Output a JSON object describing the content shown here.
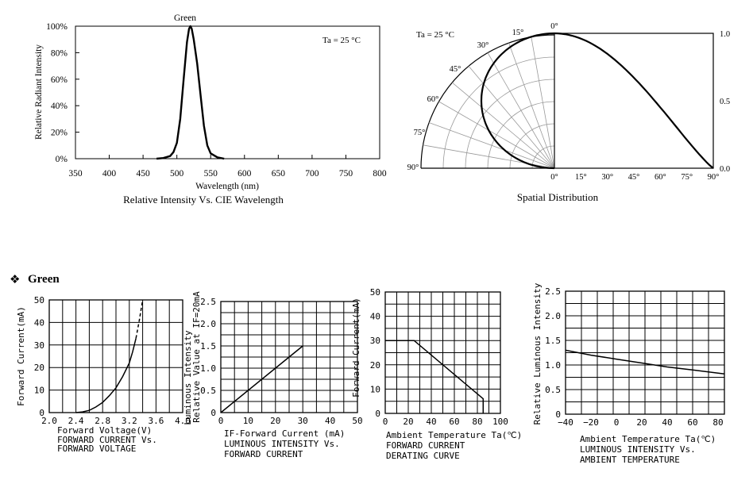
{
  "section_heading": {
    "bullet": "❖",
    "text": "Green"
  },
  "chart_data": [
    {
      "id": "spectrum",
      "type": "line",
      "title": "Relative Intensity Vs. CIE Wavelength",
      "series_label": "Green",
      "annotation": "Ta = 25 °C",
      "xlabel": "Wavelength (nm)",
      "ylabel": "Relative Radiant Intensity",
      "xlim": [
        350,
        800
      ],
      "ylim": [
        0,
        100
      ],
      "x_ticks": [
        "350",
        "400",
        "450",
        "500",
        "550",
        "600",
        "650",
        "700",
        "750",
        "800"
      ],
      "y_ticks": [
        "0%",
        "20%",
        "40%",
        "60%",
        "80%",
        "100%"
      ],
      "grid": false,
      "series": [
        {
          "x": [
            470,
            480,
            490,
            495,
            500,
            505,
            510,
            515,
            518,
            520,
            522,
            525,
            530,
            535,
            540,
            545,
            550,
            560,
            570
          ],
          "y": [
            0,
            0.5,
            2,
            5,
            12,
            30,
            60,
            88,
            98,
            100,
            98,
            90,
            72,
            48,
            25,
            10,
            4,
            1,
            0
          ]
        }
      ]
    },
    {
      "id": "spatial",
      "type": "line",
      "title": "Spatial Distribution",
      "annotation": "Ta = 25 °C",
      "angle_labels": [
        "0°",
        "15°",
        "30°",
        "45°",
        "60°",
        "75°",
        "90°"
      ],
      "x_ticks": [
        "0°",
        "15°",
        "30°",
        "45°",
        "60°",
        "75°",
        "90°"
      ],
      "radial_ticks": [
        "0.0",
        "0.5",
        "1.0"
      ],
      "series": [
        {
          "angle_deg": [
            0,
            10,
            20,
            30,
            40,
            50,
            60,
            70,
            80,
            90
          ],
          "value": [
            1.0,
            0.98,
            0.94,
            0.87,
            0.77,
            0.64,
            0.5,
            0.34,
            0.17,
            0.0
          ]
        }
      ]
    },
    {
      "id": "iv",
      "type": "line",
      "title": "FORWARD CURRENT Vs.",
      "title2": "FORWARD VOLTAGE",
      "xlabel": "Forward Voltage(V)",
      "ylabel": "Forward Current(mA)",
      "xlim": [
        2.0,
        4.0
      ],
      "ylim": [
        0,
        50
      ],
      "x_ticks": [
        "2.0",
        "2.4",
        "2.8",
        "3.2",
        "3.6",
        "4.0"
      ],
      "y_ticks": [
        "0",
        "10",
        "20",
        "30",
        "40",
        "50"
      ],
      "grid": true,
      "series": [
        {
          "x": [
            2.4,
            2.5,
            2.6,
            2.7,
            2.8,
            2.9,
            3.0,
            3.1,
            3.2,
            3.25,
            3.3
          ],
          "y": [
            0,
            0.3,
            1,
            2.5,
            4.5,
            7.5,
            11,
            16,
            22,
            27,
            33
          ],
          "style": "solid"
        },
        {
          "x": [
            3.3,
            3.35,
            3.4
          ],
          "y": [
            33,
            41,
            50
          ],
          "style": "dashed"
        }
      ]
    },
    {
      "id": "li",
      "type": "line",
      "title": "LUMINOUS INTENSITY Vs.",
      "title2": "FORWARD CURRENT",
      "xlabel": "IF-Forward Current (mA)",
      "ylabel": "Luminous Intensity",
      "ylabel2": "Relative Value at IF=20mA",
      "xlim": [
        0,
        50
      ],
      "ylim": [
        0,
        2.5
      ],
      "x_ticks": [
        "0",
        "10",
        "20",
        "30",
        "40",
        "50"
      ],
      "y_ticks": [
        "0",
        "0.5",
        "1.0",
        "1.5",
        "2.0",
        "2.5"
      ],
      "grid": true,
      "series": [
        {
          "x": [
            0,
            30
          ],
          "y": [
            0,
            1.5
          ]
        }
      ]
    },
    {
      "id": "derating",
      "type": "line",
      "title": "FORWARD CURRENT",
      "title2": "DERATING CURVE",
      "xlabel": "Ambient Temperature Ta(℃)",
      "ylabel": "Forward Current(mA)",
      "xlim": [
        0,
        100
      ],
      "ylim": [
        0,
        50
      ],
      "x_ticks": [
        "0",
        "20",
        "40",
        "60",
        "80",
        "100"
      ],
      "y_ticks": [
        "0",
        "10",
        "20",
        "30",
        "40",
        "50"
      ],
      "grid": true,
      "series": [
        {
          "x": [
            0,
            25,
            85,
            85
          ],
          "y": [
            30,
            30,
            6,
            0
          ]
        }
      ]
    },
    {
      "id": "temp",
      "type": "line",
      "title": "LUMINOUS INTENSITY Vs.",
      "title2": "AMBIENT TEMPERATURE",
      "xlabel": "Ambient Temperature Ta(℃)",
      "ylabel": "Relative Luminous Intensity",
      "xlim": [
        -40,
        85
      ],
      "ylim": [
        0,
        2.5
      ],
      "x_ticks": [
        "−40",
        "−20",
        "0",
        "20",
        "40",
        "60",
        "80"
      ],
      "x_tick_values": [
        -40,
        -20,
        0,
        20,
        40,
        60,
        80
      ],
      "y_ticks": [
        "0",
        "0.5",
        "1.0",
        "1.5",
        "2.0",
        "2.5"
      ],
      "grid": true,
      "series": [
        {
          "x": [
            -40,
            -20,
            0,
            20,
            40,
            60,
            85
          ],
          "y": [
            1.3,
            1.2,
            1.12,
            1.04,
            0.96,
            0.9,
            0.82
          ]
        }
      ]
    }
  ]
}
